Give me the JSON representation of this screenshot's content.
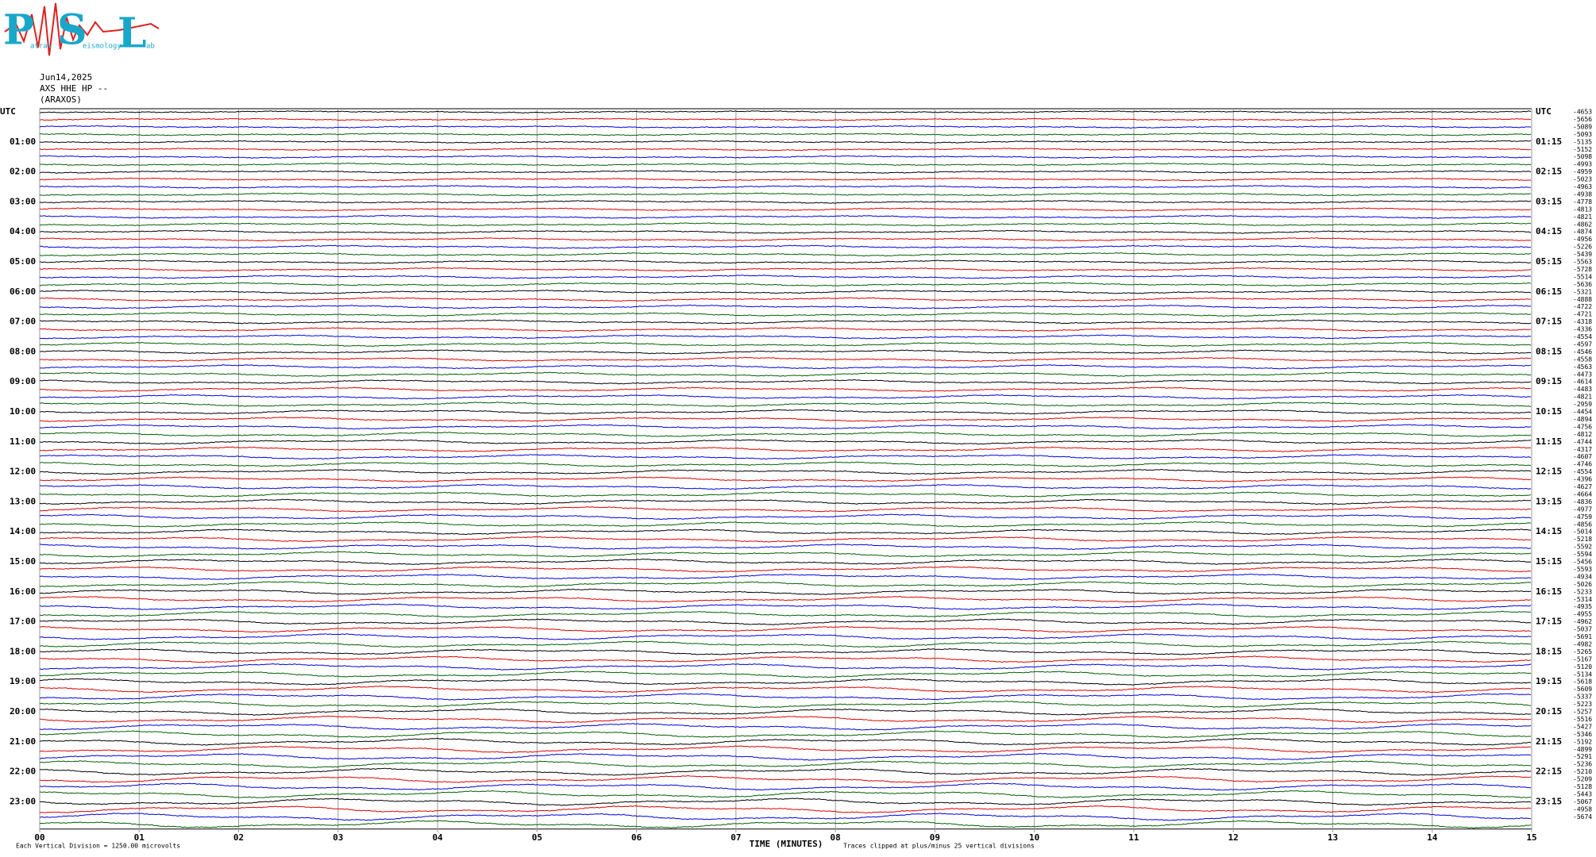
{
  "header": {
    "logo_letters": [
      "P",
      "S",
      "L"
    ],
    "logo_words": [
      "atras",
      "eismology",
      "ab"
    ],
    "date": "Jun14,2025",
    "station": "AXS HHE HP --",
    "site": "(ARAXOS)"
  },
  "left_hour_labels": [
    "UTC",
    "01:00",
    "02:00",
    "03:00",
    "04:00",
    "05:00",
    "06:00",
    "07:00",
    "08:00",
    "09:00",
    "10:00",
    "11:00",
    "12:00",
    "13:00",
    "14:00",
    "15:00",
    "16:00",
    "17:00",
    "18:00",
    "19:00",
    "20:00",
    "21:00",
    "22:00",
    "23:00"
  ],
  "right_hour_labels": [
    "UTC",
    "01:15",
    "02:15",
    "03:15",
    "04:15",
    "05:15",
    "06:15",
    "07:15",
    "08:15",
    "09:15",
    "10:15",
    "11:15",
    "12:15",
    "13:15",
    "14:15",
    "15:15",
    "16:15",
    "17:15",
    "18:15",
    "19:15",
    "20:15",
    "21:15",
    "22:15",
    "23:15"
  ],
  "trace_offsets": [
    -4653,
    -5656,
    -5089,
    -5093,
    -5135,
    -5152,
    -5098,
    -4993,
    -4959,
    -5023,
    -4963,
    -4938,
    -4778,
    -4813,
    -4821,
    -4862,
    -4874,
    -4956,
    -5226,
    -5439,
    -5563,
    -5728,
    -5514,
    -5636,
    -5321,
    -4888,
    -4722,
    -4721,
    -4318,
    -4336,
    -4554,
    -4597,
    -4546,
    -4558,
    -4563,
    -4473,
    -4614,
    -4483,
    -4821,
    -2959,
    -4454,
    -4894,
    -4756,
    -4812,
    -4744,
    -4317,
    -4607,
    -4746,
    -4554,
    -4396,
    -4627,
    -4664,
    -4836,
    -4977,
    -4759,
    -4856,
    -5014,
    -5218,
    -5592,
    -5594,
    -5456,
    -5593,
    -4934,
    -5026,
    -5233,
    -5314,
    -4935,
    -4955,
    -4962,
    -5037,
    -5691,
    -4982,
    -5265,
    -5167,
    -5120,
    -5134,
    -5618,
    -5609,
    -5337,
    -5223,
    -5257,
    -5516,
    -5427,
    -5346,
    -5192,
    -4899,
    -5291,
    -5236,
    -5210,
    -5209,
    -5128,
    -5443,
    -5067,
    -4958,
    -5674
  ],
  "trace_colors": [
    "#000000",
    "#e00000",
    "#0000e0",
    "#006000"
  ],
  "x_ticks": [
    "00",
    "01",
    "02",
    "03",
    "04",
    "05",
    "06",
    "07",
    "08",
    "09",
    "10",
    "11",
    "12",
    "13",
    "14",
    "15"
  ],
  "x_title": "TIME (MINUTES)",
  "footer_left": "Each Vertical Division = 1250.00 microvolts",
  "footer_right": "Traces clipped at plus/minus 25 vertical divisions"
}
